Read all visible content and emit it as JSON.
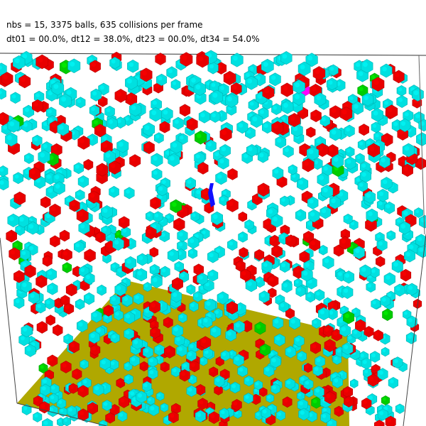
{
  "hud": {
    "line1": "nbs = 15, 3375 balls, 635 collisions per frame",
    "line2": "dt01 = 00.0%, dt12 = 38.0%, dt23 = 00.0%, dt34 = 54.0%"
  },
  "colors": {
    "background": "#ffffff",
    "floor": "#b0a800",
    "floor_shade": "#8f8800",
    "box_edge": "#333333",
    "ball_cyan": "#00e0e0",
    "ball_red": "#e80000",
    "ball_green": "#00cc00",
    "ball_magenta": "#ff00ff",
    "marker_blue": "#1010ff"
  },
  "scene": {
    "ball_types": [
      "cyan",
      "red",
      "green",
      "magenta"
    ]
  }
}
